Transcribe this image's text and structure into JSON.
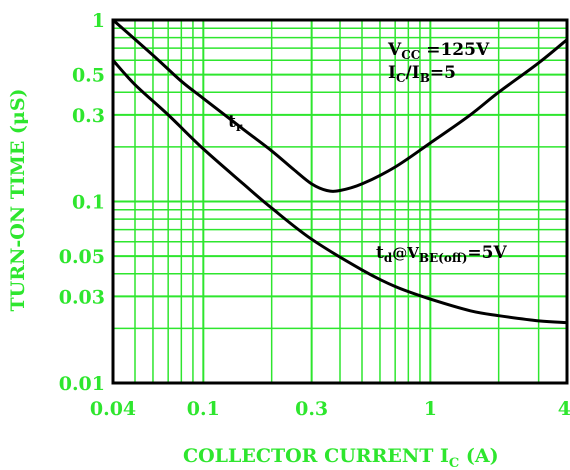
{
  "chart_data": {
    "type": "line",
    "xscale": "log",
    "yscale": "log",
    "xlim": [
      0.04,
      4
    ],
    "ylim": [
      0.01,
      1
    ],
    "grid": true,
    "xlabel": "COLLECTOR CURRENT I",
    "xlabel_sub": "C",
    "xlabel_tail": " (A)",
    "ylabel": "TURN-ON TIME (μS)",
    "xticks": [
      {
        "value": 0.04,
        "label": "0.04"
      },
      {
        "value": 0.1,
        "label": "0.1"
      },
      {
        "value": 0.3,
        "label": "0.3"
      },
      {
        "value": 1,
        "label": "1"
      },
      {
        "value": 4,
        "label": "4"
      }
    ],
    "yticks": [
      {
        "value": 1,
        "label": "1"
      },
      {
        "value": 0.5,
        "label": "0.5"
      },
      {
        "value": 0.3,
        "label": "0.3"
      },
      {
        "value": 0.1,
        "label": "0.1"
      },
      {
        "value": 0.05,
        "label": "0.05"
      },
      {
        "value": 0.03,
        "label": "0.03"
      },
      {
        "value": 0.01,
        "label": "0.01"
      }
    ],
    "x_minor_grid": [
      0.05,
      0.06,
      0.07,
      0.08,
      0.09,
      0.2,
      0.4,
      0.5,
      0.6,
      0.7,
      0.8,
      0.9,
      2,
      3
    ],
    "y_minor_grid": [
      0.02,
      0.04,
      0.06,
      0.07,
      0.08,
      0.09,
      0.2,
      0.4,
      0.6,
      0.7,
      0.8,
      0.9
    ],
    "series": [
      {
        "label": "t",
        "label_sub": "r",
        "x": [
          0.04,
          0.06,
          0.08,
          0.1,
          0.15,
          0.2,
          0.25,
          0.3,
          0.35,
          0.4,
          0.5,
          0.7,
          1,
          1.5,
          2,
          3,
          4
        ],
        "y": [
          1.0,
          0.64,
          0.46,
          0.37,
          0.25,
          0.19,
          0.15,
          0.125,
          0.115,
          0.115,
          0.125,
          0.155,
          0.21,
          0.3,
          0.4,
          0.58,
          0.78
        ]
      },
      {
        "label": "t",
        "label_sub": "d",
        "label_tail_1": "@V",
        "label_tail_sub": "BE(off)",
        "label_tail_2": "=5V",
        "x": [
          0.04,
          0.05,
          0.07,
          0.1,
          0.15,
          0.2,
          0.3,
          0.5,
          0.7,
          1,
          1.5,
          2,
          3,
          4
        ],
        "y": [
          0.6,
          0.44,
          0.3,
          0.195,
          0.125,
          0.092,
          0.062,
          0.042,
          0.034,
          0.029,
          0.025,
          0.0235,
          0.022,
          0.0215
        ]
      }
    ],
    "annotation": {
      "line1_a": "V",
      "line1_sub": "CC",
      "line1_b": " =125V",
      "line2_a": "I",
      "line2_sub1": "C",
      "line2_b": "/I",
      "line2_sub2": "B",
      "line2_c": "=5"
    },
    "colors": {
      "grid": "#2ee62e",
      "curve": "#000000",
      "frame": "#000000",
      "labels": "#2ee62e"
    }
  }
}
